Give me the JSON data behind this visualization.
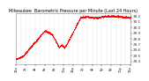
{
  "title": "Milwaukee  Barometric Pressure per Minute (Last 24 Hours)",
  "bg_color": "#ffffff",
  "plot_bg_color": "#ffffff",
  "grid_color": "#c0c0c0",
  "dot_color": "#ff0000",
  "dot_size": 0.3,
  "ylim": [
    29.35,
    30.25
  ],
  "yticks": [
    29.4,
    29.5,
    29.6,
    29.7,
    29.8,
    29.9,
    30.0,
    30.1,
    30.2
  ],
  "ylabel_fontsize": 3.0,
  "title_fontsize": 3.5,
  "xlabel_fontsize": 2.5,
  "num_points": 1440,
  "spine_color": "#888888"
}
